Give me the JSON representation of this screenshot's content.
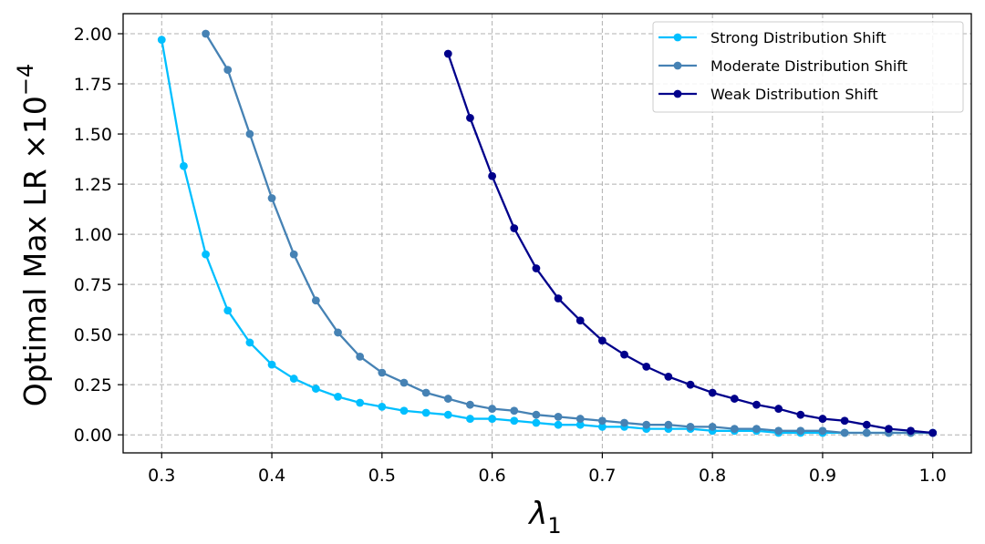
{
  "chart_data": {
    "type": "line",
    "title": "",
    "xlabel": "λ",
    "xlabel_subscript": "1",
    "ylabel": "Optimal Max LR ×10",
    "ylabel_exponent": "−4",
    "xlim": [
      0.265,
      1.035
    ],
    "ylim": [
      -0.09,
      2.1
    ],
    "xticks": [
      0.3,
      0.4,
      0.5,
      0.6,
      0.7,
      0.8,
      0.9,
      1.0
    ],
    "xtick_labels": [
      "0.3",
      "0.4",
      "0.5",
      "0.6",
      "0.7",
      "0.8",
      "0.9",
      "1.0"
    ],
    "yticks": [
      0.0,
      0.25,
      0.5,
      0.75,
      1.0,
      1.25,
      1.5,
      1.75,
      2.0
    ],
    "ytick_labels": [
      "0.00",
      "0.25",
      "0.50",
      "0.75",
      "1.00",
      "1.25",
      "1.50",
      "1.75",
      "2.00"
    ],
    "grid": true,
    "legend_position": "top-right",
    "series": [
      {
        "name": "Strong Distribution Shift",
        "color": "#00BFFF",
        "x": [
          0.3,
          0.32,
          0.34,
          0.36,
          0.38,
          0.4,
          0.42,
          0.44,
          0.46,
          0.48,
          0.5,
          0.52,
          0.54,
          0.56,
          0.58,
          0.6,
          0.62,
          0.64,
          0.66,
          0.68,
          0.7,
          0.72,
          0.74,
          0.76,
          0.78,
          0.8,
          0.82,
          0.84,
          0.86,
          0.88,
          0.9,
          0.92,
          0.94,
          0.96,
          0.98,
          1.0
        ],
        "y": [
          1.97,
          1.34,
          0.9,
          0.62,
          0.46,
          0.35,
          0.28,
          0.23,
          0.19,
          0.16,
          0.14,
          0.12,
          0.11,
          0.1,
          0.08,
          0.08,
          0.07,
          0.06,
          0.05,
          0.05,
          0.04,
          0.04,
          0.03,
          0.03,
          0.03,
          0.02,
          0.02,
          0.02,
          0.01,
          0.01,
          0.01,
          0.01,
          0.01,
          0.01,
          0.01,
          0.01
        ]
      },
      {
        "name": "Moderate Distribution Shift",
        "color": "#4682B4",
        "x": [
          0.34,
          0.36,
          0.38,
          0.4,
          0.42,
          0.44,
          0.46,
          0.48,
          0.5,
          0.52,
          0.54,
          0.56,
          0.58,
          0.6,
          0.62,
          0.64,
          0.66,
          0.68,
          0.7,
          0.72,
          0.74,
          0.76,
          0.78,
          0.8,
          0.82,
          0.84,
          0.86,
          0.88,
          0.9,
          0.92,
          0.94,
          0.96,
          0.98,
          1.0
        ],
        "y": [
          2.0,
          1.82,
          1.5,
          1.18,
          0.9,
          0.67,
          0.51,
          0.39,
          0.31,
          0.26,
          0.21,
          0.18,
          0.15,
          0.13,
          0.12,
          0.1,
          0.09,
          0.08,
          0.07,
          0.06,
          0.05,
          0.05,
          0.04,
          0.04,
          0.03,
          0.03,
          0.02,
          0.02,
          0.02,
          0.01,
          0.01,
          0.01,
          0.01,
          0.01
        ]
      },
      {
        "name": "Weak Distribution Shift",
        "color": "#00008B",
        "x": [
          0.56,
          0.58,
          0.6,
          0.62,
          0.64,
          0.66,
          0.68,
          0.7,
          0.72,
          0.74,
          0.76,
          0.78,
          0.8,
          0.82,
          0.84,
          0.86,
          0.88,
          0.9,
          0.92,
          0.94,
          0.96,
          0.98,
          1.0
        ],
        "y": [
          1.9,
          1.58,
          1.29,
          1.03,
          0.83,
          0.68,
          0.57,
          0.47,
          0.4,
          0.34,
          0.29,
          0.25,
          0.21,
          0.18,
          0.15,
          0.13,
          0.1,
          0.08,
          0.07,
          0.05,
          0.03,
          0.02,
          0.01
        ]
      }
    ]
  }
}
